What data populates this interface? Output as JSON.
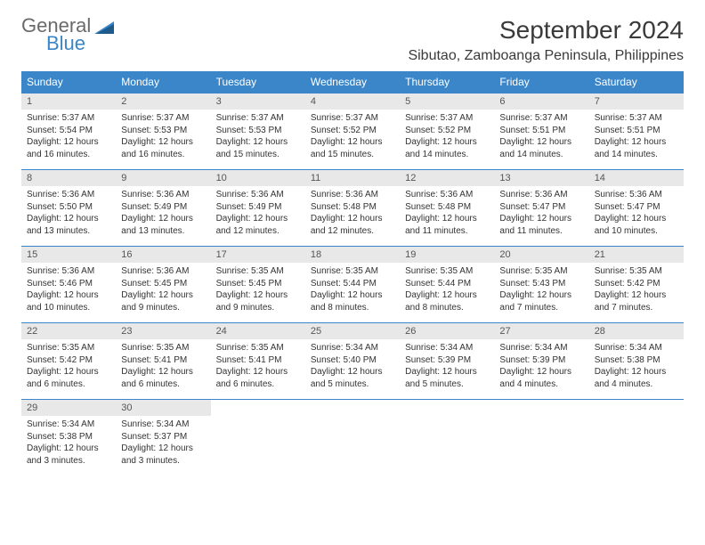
{
  "brand": {
    "name_gray": "General",
    "name_blue": "Blue"
  },
  "title": "September 2024",
  "location": "Sibutao, Zamboanga Peninsula, Philippines",
  "colors": {
    "header_bg": "#3a86c8",
    "header_text": "#ffffff",
    "date_bg": "#e8e8e8",
    "date_border": "#3a86c8",
    "body_text": "#333333",
    "title_text": "#3a3a3a",
    "logo_gray": "#6a6a6a",
    "logo_blue": "#3a86c8"
  },
  "day_names": [
    "Sunday",
    "Monday",
    "Tuesday",
    "Wednesday",
    "Thursday",
    "Friday",
    "Saturday"
  ],
  "weeks": [
    [
      {
        "date": "1",
        "sunrise": "5:37 AM",
        "sunset": "5:54 PM",
        "daylight": "12 hours and 16 minutes."
      },
      {
        "date": "2",
        "sunrise": "5:37 AM",
        "sunset": "5:53 PM",
        "daylight": "12 hours and 16 minutes."
      },
      {
        "date": "3",
        "sunrise": "5:37 AM",
        "sunset": "5:53 PM",
        "daylight": "12 hours and 15 minutes."
      },
      {
        "date": "4",
        "sunrise": "5:37 AM",
        "sunset": "5:52 PM",
        "daylight": "12 hours and 15 minutes."
      },
      {
        "date": "5",
        "sunrise": "5:37 AM",
        "sunset": "5:52 PM",
        "daylight": "12 hours and 14 minutes."
      },
      {
        "date": "6",
        "sunrise": "5:37 AM",
        "sunset": "5:51 PM",
        "daylight": "12 hours and 14 minutes."
      },
      {
        "date": "7",
        "sunrise": "5:37 AM",
        "sunset": "5:51 PM",
        "daylight": "12 hours and 14 minutes."
      }
    ],
    [
      {
        "date": "8",
        "sunrise": "5:36 AM",
        "sunset": "5:50 PM",
        "daylight": "12 hours and 13 minutes."
      },
      {
        "date": "9",
        "sunrise": "5:36 AM",
        "sunset": "5:49 PM",
        "daylight": "12 hours and 13 minutes."
      },
      {
        "date": "10",
        "sunrise": "5:36 AM",
        "sunset": "5:49 PM",
        "daylight": "12 hours and 12 minutes."
      },
      {
        "date": "11",
        "sunrise": "5:36 AM",
        "sunset": "5:48 PM",
        "daylight": "12 hours and 12 minutes."
      },
      {
        "date": "12",
        "sunrise": "5:36 AM",
        "sunset": "5:48 PM",
        "daylight": "12 hours and 11 minutes."
      },
      {
        "date": "13",
        "sunrise": "5:36 AM",
        "sunset": "5:47 PM",
        "daylight": "12 hours and 11 minutes."
      },
      {
        "date": "14",
        "sunrise": "5:36 AM",
        "sunset": "5:47 PM",
        "daylight": "12 hours and 10 minutes."
      }
    ],
    [
      {
        "date": "15",
        "sunrise": "5:36 AM",
        "sunset": "5:46 PM",
        "daylight": "12 hours and 10 minutes."
      },
      {
        "date": "16",
        "sunrise": "5:36 AM",
        "sunset": "5:45 PM",
        "daylight": "12 hours and 9 minutes."
      },
      {
        "date": "17",
        "sunrise": "5:35 AM",
        "sunset": "5:45 PM",
        "daylight": "12 hours and 9 minutes."
      },
      {
        "date": "18",
        "sunrise": "5:35 AM",
        "sunset": "5:44 PM",
        "daylight": "12 hours and 8 minutes."
      },
      {
        "date": "19",
        "sunrise": "5:35 AM",
        "sunset": "5:44 PM",
        "daylight": "12 hours and 8 minutes."
      },
      {
        "date": "20",
        "sunrise": "5:35 AM",
        "sunset": "5:43 PM",
        "daylight": "12 hours and 7 minutes."
      },
      {
        "date": "21",
        "sunrise": "5:35 AM",
        "sunset": "5:42 PM",
        "daylight": "12 hours and 7 minutes."
      }
    ],
    [
      {
        "date": "22",
        "sunrise": "5:35 AM",
        "sunset": "5:42 PM",
        "daylight": "12 hours and 6 minutes."
      },
      {
        "date": "23",
        "sunrise": "5:35 AM",
        "sunset": "5:41 PM",
        "daylight": "12 hours and 6 minutes."
      },
      {
        "date": "24",
        "sunrise": "5:35 AM",
        "sunset": "5:41 PM",
        "daylight": "12 hours and 6 minutes."
      },
      {
        "date": "25",
        "sunrise": "5:34 AM",
        "sunset": "5:40 PM",
        "daylight": "12 hours and 5 minutes."
      },
      {
        "date": "26",
        "sunrise": "5:34 AM",
        "sunset": "5:39 PM",
        "daylight": "12 hours and 5 minutes."
      },
      {
        "date": "27",
        "sunrise": "5:34 AM",
        "sunset": "5:39 PM",
        "daylight": "12 hours and 4 minutes."
      },
      {
        "date": "28",
        "sunrise": "5:34 AM",
        "sunset": "5:38 PM",
        "daylight": "12 hours and 4 minutes."
      }
    ],
    [
      {
        "date": "29",
        "sunrise": "5:34 AM",
        "sunset": "5:38 PM",
        "daylight": "12 hours and 3 minutes."
      },
      {
        "date": "30",
        "sunrise": "5:34 AM",
        "sunset": "5:37 PM",
        "daylight": "12 hours and 3 minutes."
      },
      null,
      null,
      null,
      null,
      null
    ]
  ]
}
